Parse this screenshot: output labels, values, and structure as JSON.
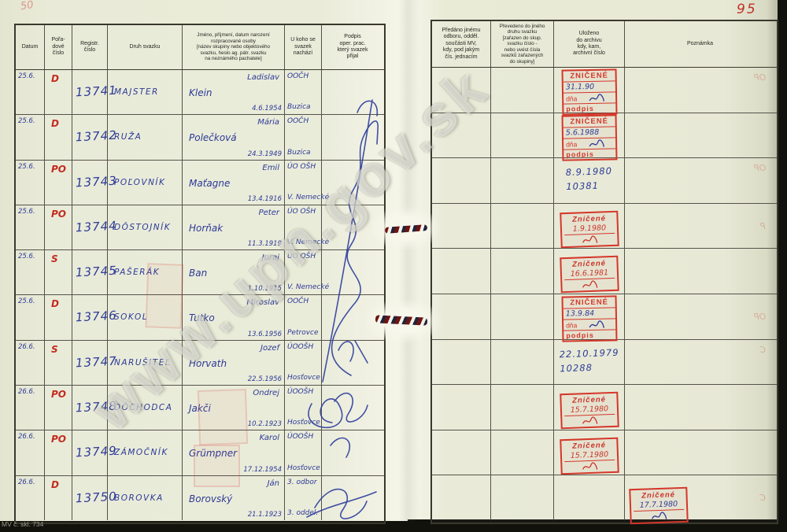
{
  "page": {
    "hand_number_top_left": "50",
    "page_number": "95",
    "form_code": "MV č. skl. 734",
    "watermark": "www.upn.gov.sk"
  },
  "colors": {
    "paper": "#e9ebd8",
    "ink_blue": "#2c3a96",
    "mark_red": "#c22c20",
    "stamp_red": "#d4372a"
  },
  "left_table": {
    "headers": {
      "datum": "Datum",
      "poradove": "Pořa-\ndové\nčíslo",
      "registr": "Registr.\nčíslo",
      "druh": "Druh svazku",
      "jmeno": "Jméno, příjmení, datum narození\nrozpracované osoby\n[název skupiny nebo objektového\nsvazku, heslo ag. pátr. svazku\nna neznámého pachatele]",
      "ukoho": "U koho se\nsvazek\nnachází",
      "podpis": "Podpis\noper. prac.\nkterý svazek\npřijal"
    }
  },
  "right_table": {
    "headers": {
      "predano": "Předáno jinému\nodboru, odděl.\nsoučásti MV,\nkdy, pod jakým\nčís. jednacím",
      "prevedeno": "Převedeno do jiného\ndruhu svazku\n[zařazen do skup.\nsvazku číslo -\nnebo uvést čísla\nsvazků zařazených\ndo skupiny]",
      "ulozeno": "Uloženo\ndo archivu\nkdy, kam,\narchivní číslo",
      "poznamka": "Poznámka"
    }
  },
  "rows": [
    {
      "datum": "25.6.",
      "mark": "D",
      "reg": "13741",
      "druh": "MAJSTER",
      "first": "Ladislav",
      "surname": "Klein",
      "birth": "4.6.1954",
      "loc_top": "OOČH",
      "loc_bot": "Buzica",
      "archive": {
        "type": "stamp-big",
        "title": "ZNIČENÉ",
        "date": "31.1.90",
        "dna_label": "dňa",
        "podpis_label": "podpis"
      },
      "ghost": "OP"
    },
    {
      "datum": "25.6.",
      "mark": "D",
      "reg": "13742",
      "druh": "RUŽA",
      "first": "Mária",
      "surname": "Polečková",
      "birth": "24.3.1949",
      "loc_top": "OOČH",
      "loc_bot": "Buzica",
      "archive": {
        "type": "stamp-big",
        "title": "ZNIČENÉ",
        "date": "5.6.1988",
        "dna_label": "dňa",
        "podpis_label": "podpis"
      },
      "ghost": ""
    },
    {
      "datum": "25.6.",
      "mark": "PO",
      "reg": "13743",
      "druh": "POĽOVNÍK",
      "first": "Emil",
      "surname": "Maťagne",
      "birth": "13.4.1916",
      "loc_top": "ÚO OŠH",
      "loc_bot": "V. Nemecké",
      "archive": {
        "type": "hand",
        "date": "8.9.1980",
        "number": "10381"
      },
      "ghost": "OP"
    },
    {
      "datum": "25.6.",
      "mark": "PO",
      "reg": "13744",
      "druh": "DÔSTOJNÍK",
      "first": "Peter",
      "surname": "Horňak",
      "birth": "11.3.1919",
      "loc_top": "ÚO OŠH",
      "loc_bot": "V. Nemecké",
      "archive": {
        "type": "stamp-small",
        "title": "Zničené",
        "date": "1.9.1980"
      },
      "ghost": "P"
    },
    {
      "datum": "25.6.",
      "mark": "S",
      "reg": "13745",
      "druh": "PAŠERÁK",
      "first": "Juraj",
      "surname": "Ban",
      "birth": "1.10.1915",
      "loc_top": "ÚO OŠH",
      "loc_bot": "V. Nemecké",
      "archive": {
        "type": "stamp-small",
        "title": "Zničené",
        "date": "16.6.1981"
      },
      "ghost": ""
    },
    {
      "datum": "25.6.",
      "mark": "D",
      "reg": "13746",
      "druh": "SOKOL",
      "first": "Miroslav",
      "surname": "Tutko",
      "birth": "13.6.1956",
      "loc_top": "OOČH",
      "loc_bot": "Petrovce",
      "archive": {
        "type": "stamp-big",
        "title": "ZNIČENÉ",
        "date": "13.9.84",
        "dna_label": "dňa",
        "podpis_label": "podpis"
      },
      "ghost": "OP"
    },
    {
      "datum": "26.6.",
      "mark": "S",
      "reg": "13747",
      "druh": "NARUŠITEĽ",
      "first": "Jozef",
      "surname": "Horvath",
      "birth": "22.5.1956",
      "loc_top": "ÚOOŠH",
      "loc_bot": "Hosťovce",
      "archive": {
        "type": "hand",
        "date": "22.10.1979",
        "number": "10288"
      },
      "ghost": "C"
    },
    {
      "datum": "26.6.",
      "mark": "PO",
      "reg": "13748",
      "druh": "DÔCHODCA",
      "first": "Ondrej",
      "surname": "Jakči",
      "birth": "10.2.1923",
      "loc_top": "ÚOOŠH",
      "loc_bot": "Hosťovce",
      "archive": {
        "type": "stamp-small",
        "title": "Zničené",
        "date": "15.7.1980"
      },
      "ghost": ""
    },
    {
      "datum": "26.6.",
      "mark": "PO",
      "reg": "13749",
      "druh": "ZÁMOČNÍK",
      "first": "Karol",
      "surname": "Grümpner",
      "birth": "17.12.1954",
      "loc_top": "ÚOOŠH",
      "loc_bot": "Hosťovce",
      "archive": {
        "type": "stamp-small",
        "title": "Zničené",
        "date": "15.7.1980"
      },
      "ghost": ""
    },
    {
      "datum": "26.6.",
      "mark": "D",
      "reg": "13750",
      "druh": "BOROVKA",
      "first": "Ján",
      "surname": "Borovský",
      "birth": "21.1.1923",
      "loc_top": "3. odbor",
      "loc_bot": "3. oddel.",
      "archive": {
        "type": "stamp-small",
        "title": "Zničené",
        "date": "17.7.1980",
        "placement": "poznamka",
        "date_ink": "blue"
      },
      "ghost": "C"
    }
  ]
}
